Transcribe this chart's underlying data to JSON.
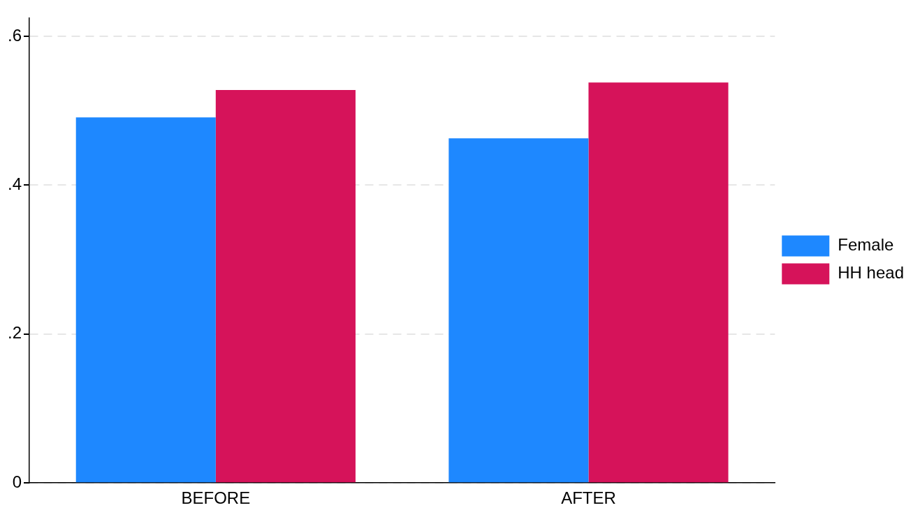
{
  "chart_data": {
    "type": "bar",
    "categories": [
      "BEFORE",
      "AFTER"
    ],
    "series": [
      {
        "name": "Female",
        "color": "#1e88ff",
        "values": [
          0.491,
          0.463
        ]
      },
      {
        "name": "HH head",
        "color": "#d6135a",
        "values": [
          0.528,
          0.538
        ]
      }
    ],
    "ylim": [
      0,
      0.625
    ],
    "yticks": [
      {
        "value": 0,
        "label": "0"
      },
      {
        "value": 0.2,
        "label": ".2"
      },
      {
        "value": 0.4,
        "label": ".4"
      },
      {
        "value": 0.6,
        "label": ".6"
      }
    ],
    "grid": "y",
    "legend": "right"
  }
}
